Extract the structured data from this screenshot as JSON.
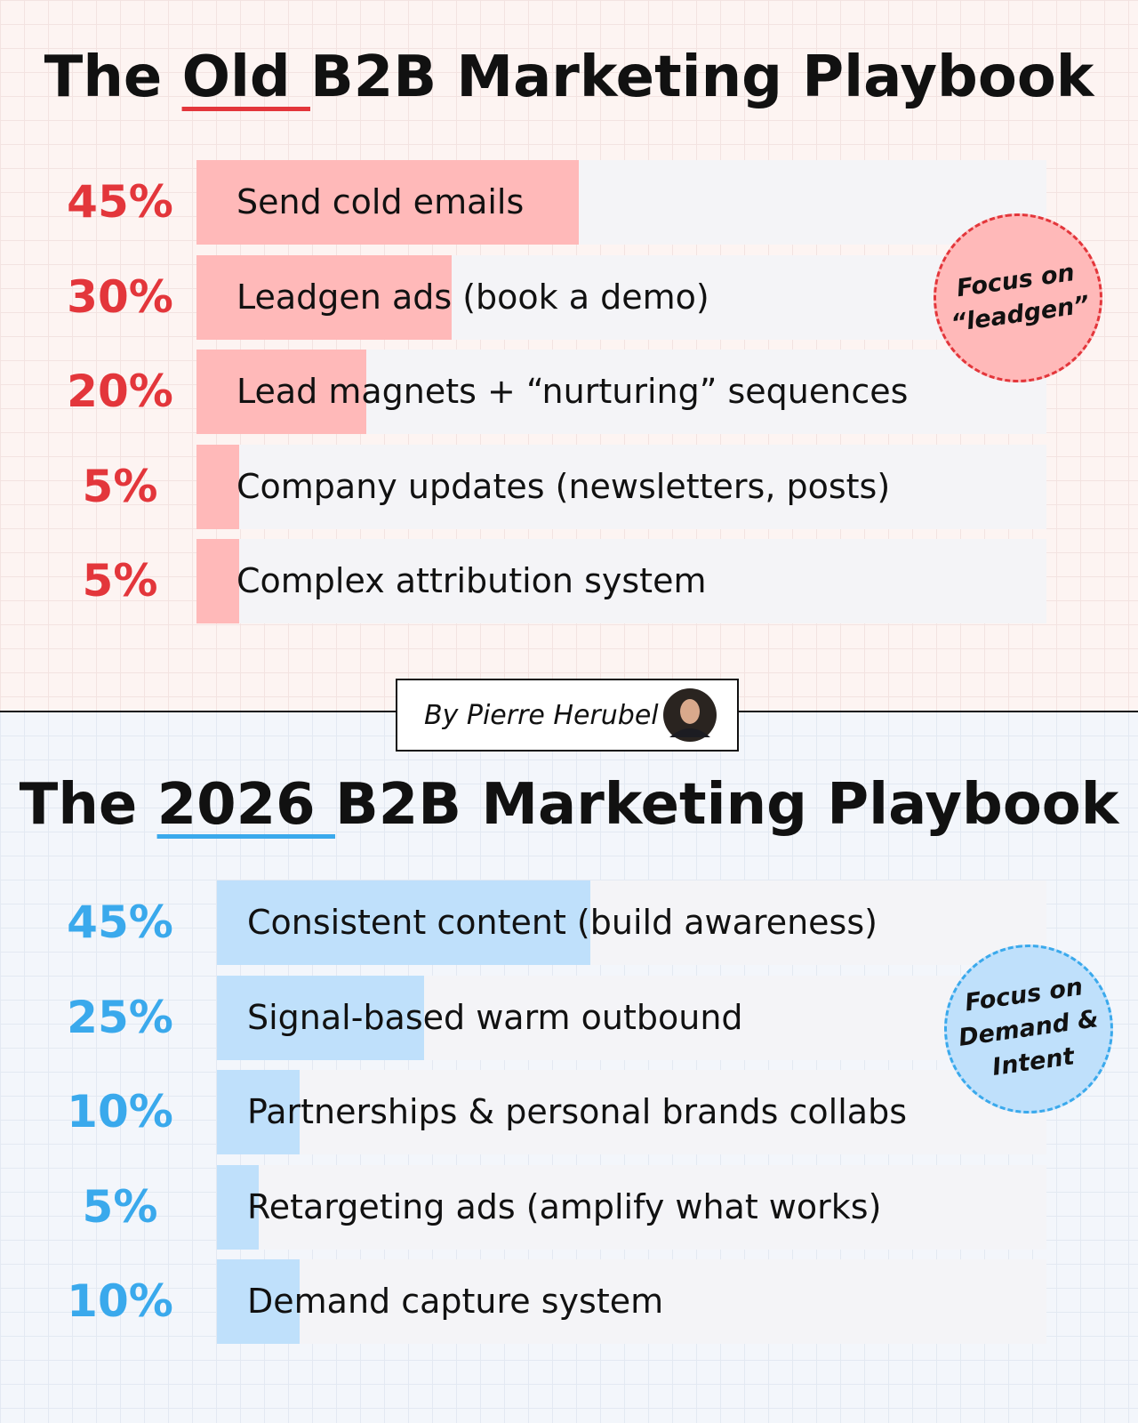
{
  "chart_data": [
    {
      "type": "bar",
      "title": "The Old B2B Marketing Playbook",
      "categories": [
        "Send cold emails",
        "Leadgen ads (book a demo)",
        "Lead magnets + “nurturing” sequences",
        "Company updates (newsletters, posts)",
        "Complex attribution system"
      ],
      "values": [
        45,
        30,
        20,
        5,
        5
      ],
      "value_labels": [
        "45%",
        "30%",
        "20%",
        "5%",
        "5%"
      ],
      "xlim": [
        0,
        100
      ],
      "color": "#ffb9b9",
      "label_color": "#e3363b",
      "annotation": [
        "Focus on",
        "“leadgen”"
      ]
    },
    {
      "type": "bar",
      "title": "The 2026 B2B Marketing Playbook",
      "categories": [
        "Consistent content (build awareness)",
        "Signal-based warm outbound",
        "Partnerships & personal brands collabs",
        "Retargeting ads (amplify what works)",
        "Demand capture system"
      ],
      "values": [
        45,
        25,
        10,
        5,
        10
      ],
      "value_labels": [
        "45%",
        "25%",
        "10%",
        "5%",
        "10%"
      ],
      "xlim": [
        0,
        100
      ],
      "color": "#bfe0fb",
      "label_color": "#3aa9ec",
      "annotation": [
        "Focus on",
        "Demand &",
        "Intent"
      ]
    }
  ],
  "byline": "By Pierre Herubel"
}
